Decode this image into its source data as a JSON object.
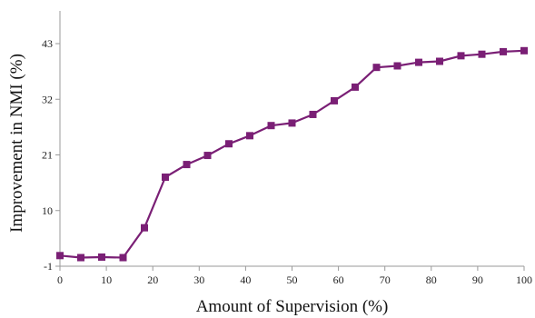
{
  "chart_data": {
    "type": "line",
    "title": "",
    "xlabel": "Amount of Supervision (%)",
    "ylabel": "Improvement in NMI (%)",
    "xlim": [
      0,
      100
    ],
    "ylim": [
      -1,
      43
    ],
    "xticks": [
      0,
      10,
      20,
      30,
      40,
      50,
      60,
      70,
      80,
      90,
      100
    ],
    "yticks": [
      -1,
      10,
      21,
      32,
      43
    ],
    "grid": false,
    "legend": "none",
    "series": [
      {
        "color": "#7a1f75",
        "marker": "square",
        "x": [
          0,
          4.5,
          9,
          13.6,
          18.2,
          22.7,
          27.3,
          31.8,
          36.4,
          40.9,
          45.5,
          50,
          54.5,
          59.1,
          63.6,
          68.2,
          72.7,
          77.3,
          81.8,
          86.4,
          90.9,
          95.5,
          100
        ],
        "y": [
          1.1,
          0.7,
          0.8,
          0.7,
          6.6,
          16.6,
          19.1,
          20.9,
          23.2,
          24.8,
          26.8,
          27.3,
          29.0,
          31.7,
          34.4,
          38.3,
          38.6,
          39.3,
          39.5,
          40.6,
          40.9,
          41.4,
          41.6
        ]
      }
    ]
  }
}
